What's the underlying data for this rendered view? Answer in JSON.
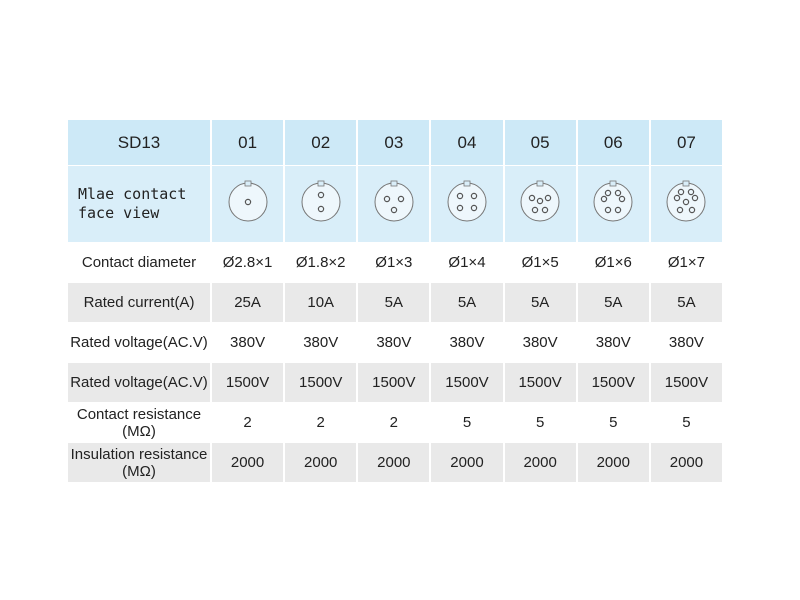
{
  "table": {
    "header": [
      "SD13",
      "01",
      "02",
      "03",
      "04",
      "05",
      "06",
      "07"
    ],
    "face_label": [
      "Mlae contact",
      "face view"
    ],
    "rows": [
      {
        "label": "Contact diameter",
        "values": [
          "Ø2.8×1",
          "Ø1.8×2",
          "Ø1×3",
          "Ø1×4",
          "Ø1×5",
          "Ø1×6",
          "Ø1×7"
        ]
      },
      {
        "label": "Rated current(A)",
        "values": [
          "25A",
          "10A",
          "5A",
          "5A",
          "5A",
          "5A",
          "5A"
        ]
      },
      {
        "label": "Rated voltage(AC.V)",
        "values": [
          "380V",
          "380V",
          "380V",
          "380V",
          "380V",
          "380V",
          "380V"
        ]
      },
      {
        "label": "Rated voltage(AC.V)",
        "values": [
          "1500V",
          "1500V",
          "1500V",
          "1500V",
          "1500V",
          "1500V",
          "1500V"
        ]
      },
      {
        "label": "Contact resistance (MΩ)",
        "values": [
          "2",
          "2",
          "2",
          "5",
          "5",
          "5",
          "5"
        ]
      },
      {
        "label": "Insulation resistance (MΩ)",
        "values": [
          "2000",
          "2000",
          "2000",
          "2000",
          "2000",
          "2000",
          "2000"
        ]
      }
    ]
  }
}
